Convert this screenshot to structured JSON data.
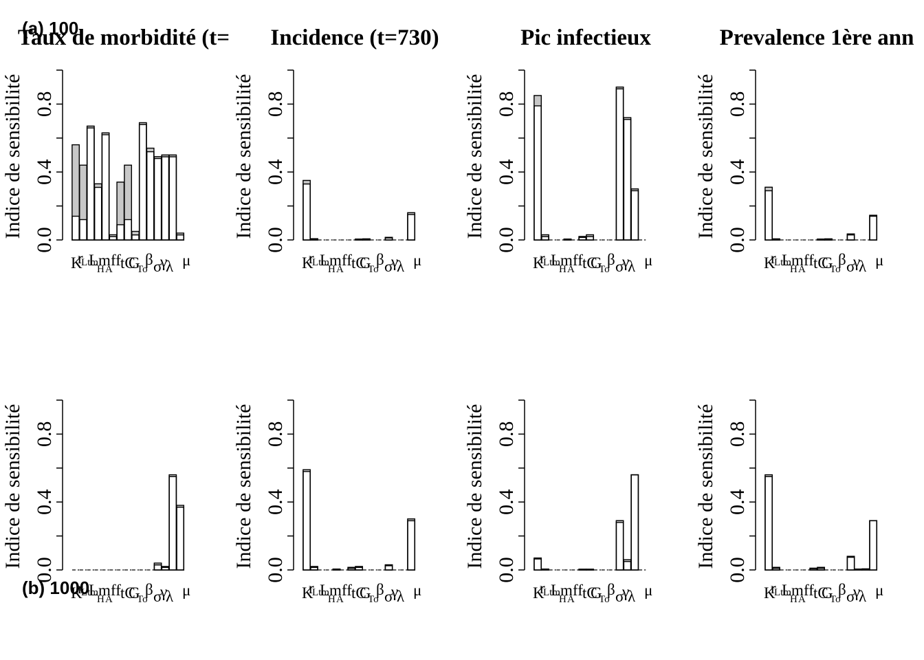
{
  "row_labels": [
    "(a) 100",
    "(b) 1000"
  ],
  "chart_data": [
    {
      "type": "bar",
      "title": "Taux de morbidité (t=",
      "ylabel": "Indice de sensibilité",
      "ylim": [
        0,
        1
      ],
      "yticks": [
        "0.0",
        "0.4",
        "0.8"
      ],
      "categories": [
        "K",
        "r",
        "Ltm",
        "Lm",
        "H",
        "A",
        "ff",
        "tC",
        "G",
        "To",
        "β",
        "σ",
        "γ",
        "λ",
        "μ"
      ],
      "first_order": [
        0.14,
        0.12,
        0.66,
        0.31,
        0.62,
        0.02,
        0.09,
        0.12,
        0.03,
        0.68,
        0.52,
        0.48,
        0.49,
        0.49,
        0.03
      ],
      "total_order": [
        0.56,
        0.44,
        0.67,
        0.33,
        0.63,
        0.03,
        0.34,
        0.44,
        0.05,
        0.69,
        0.54,
        0.49,
        0.5,
        0.5,
        0.04
      ]
    },
    {
      "type": "bar",
      "title": "Incidence (t=730)",
      "ylabel": "Indice de sensibilité",
      "ylim": [
        0,
        1
      ],
      "yticks": [
        "0.0",
        "0.4",
        "0.8"
      ],
      "categories": [
        "K",
        "r",
        "Ltm",
        "Lm",
        "H",
        "A",
        "ff",
        "tC",
        "G",
        "To",
        "β",
        "σ",
        "γ",
        "λ",
        "μ"
      ],
      "first_order": [
        0.33,
        0.005,
        0,
        0,
        0,
        0,
        0,
        0.004,
        0.005,
        0,
        0,
        0.012,
        0,
        0,
        0.15
      ],
      "total_order": [
        0.35,
        0.007,
        0,
        0,
        0,
        0,
        0,
        0.005,
        0.006,
        0,
        0,
        0.015,
        0,
        0,
        0.16
      ]
    },
    {
      "type": "bar",
      "title": "Pic infectieux",
      "ylabel": "Indice de sensibilité",
      "ylim": [
        0,
        1
      ],
      "yticks": [
        "0.0",
        "0.4",
        "0.8"
      ],
      "categories": [
        "K",
        "r",
        "Ltm",
        "Lm",
        "H",
        "A",
        "ff",
        "tC",
        "G",
        "To",
        "β",
        "σ",
        "γ",
        "λ",
        "μ"
      ],
      "first_order": [
        0.79,
        0.02,
        0,
        0,
        0.004,
        0,
        0.015,
        0.02,
        0,
        0,
        0,
        0.89,
        0.71,
        0.29,
        0
      ],
      "total_order": [
        0.85,
        0.03,
        0,
        0,
        0.005,
        0,
        0.02,
        0.03,
        0,
        0,
        0,
        0.9,
        0.72,
        0.3,
        0
      ]
    },
    {
      "type": "bar",
      "title": "Prevalence 1ère ann",
      "ylabel": "Indice de sensibilité",
      "ylim": [
        0,
        1
      ],
      "yticks": [
        "0.0",
        "0.4",
        "0.8"
      ],
      "categories": [
        "K",
        "r",
        "Ltm",
        "Lm",
        "H",
        "A",
        "ff",
        "tC",
        "G",
        "To",
        "β",
        "σ",
        "γ",
        "λ",
        "μ"
      ],
      "first_order": [
        0.29,
        0.004,
        0,
        0,
        0,
        0,
        0,
        0.004,
        0.005,
        0,
        0,
        0.03,
        0,
        0,
        0.14
      ],
      "total_order": [
        0.31,
        0.006,
        0,
        0,
        0,
        0,
        0,
        0.005,
        0.006,
        0,
        0,
        0.035,
        0,
        0,
        0.145
      ]
    },
    {
      "type": "bar",
      "title": "",
      "ylabel": "Indice de sensibilité",
      "ylim": [
        0,
        1
      ],
      "yticks": [
        "0.0",
        "0.4",
        "0.8"
      ],
      "categories": [
        "K",
        "r",
        "Ltm",
        "Lm",
        "H",
        "A",
        "ff",
        "tC",
        "G",
        "To",
        "β",
        "σ",
        "γ",
        "λ",
        "μ"
      ],
      "first_order": [
        0,
        0,
        0,
        0,
        0,
        0,
        0,
        0,
        0,
        0,
        0,
        0.03,
        0.015,
        0.55,
        0.37
      ],
      "total_order": [
        0,
        0,
        0,
        0,
        0,
        0,
        0,
        0,
        0,
        0,
        0,
        0.04,
        0.02,
        0.56,
        0.38
      ]
    },
    {
      "type": "bar",
      "title": "",
      "ylabel": "Indice de sensibilité",
      "ylim": [
        0,
        1
      ],
      "yticks": [
        "0.0",
        "0.4",
        "0.8"
      ],
      "categories": [
        "K",
        "r",
        "Ltm",
        "Lm",
        "H",
        "A",
        "ff",
        "tC",
        "G",
        "To",
        "β",
        "σ",
        "γ",
        "λ",
        "μ"
      ],
      "first_order": [
        0.58,
        0.015,
        0,
        0,
        0.004,
        0,
        0.01,
        0.015,
        0,
        0,
        0,
        0.025,
        0,
        0,
        0.29
      ],
      "total_order": [
        0.59,
        0.02,
        0,
        0,
        0.005,
        0,
        0.015,
        0.02,
        0,
        0,
        0,
        0.03,
        0,
        0,
        0.3
      ]
    },
    {
      "type": "bar",
      "title": "",
      "ylabel": "Indice de sensibilité",
      "ylim": [
        0,
        1
      ],
      "yticks": [
        "0.0",
        "0.4",
        "0.8"
      ],
      "categories": [
        "K",
        "r",
        "Ltm",
        "Lm",
        "H",
        "A",
        "ff",
        "tC",
        "G",
        "To",
        "β",
        "σ",
        "γ",
        "λ",
        "μ"
      ],
      "first_order": [
        0.065,
        0.003,
        0,
        0,
        0,
        0,
        0.003,
        0.003,
        0,
        0,
        0,
        0.28,
        0.05,
        0.56,
        0
      ],
      "total_order": [
        0.07,
        0.005,
        0,
        0,
        0,
        0,
        0.004,
        0.004,
        0,
        0,
        0,
        0.29,
        0.06,
        0.56,
        0
      ]
    },
    {
      "type": "bar",
      "title": "",
      "ylabel": "Indice de sensibilité",
      "ylim": [
        0,
        1
      ],
      "yticks": [
        "0.0",
        "0.4",
        "0.8"
      ],
      "categories": [
        "K",
        "r",
        "Ltm",
        "Lm",
        "H",
        "A",
        "ff",
        "tC",
        "G",
        "To",
        "β",
        "σ",
        "γ",
        "λ",
        "μ"
      ],
      "first_order": [
        0.55,
        0.01,
        0,
        0,
        0,
        0,
        0.008,
        0.01,
        0,
        0,
        0,
        0.075,
        0.004,
        0.005,
        0.29
      ],
      "total_order": [
        0.56,
        0.015,
        0,
        0,
        0,
        0,
        0.01,
        0.015,
        0,
        0,
        0,
        0.08,
        0.005,
        0.006,
        0.29
      ]
    }
  ]
}
